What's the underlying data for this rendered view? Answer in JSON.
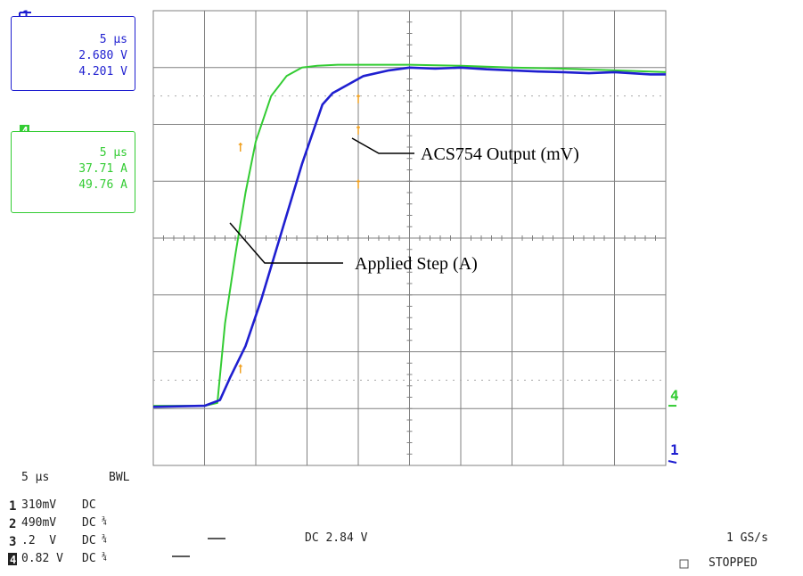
{
  "colors": {
    "ch1": "#1f1fd0",
    "ch4": "#33cc33",
    "cursor": "#f0a020",
    "grid": "#808080",
    "text": "#222222"
  },
  "channel1_box": {
    "channel": "1",
    "time": "5 µs",
    "value1": "2.680 V",
    "value2": "4.201 V"
  },
  "channel4_box": {
    "channel": "4",
    "time": "5 µs",
    "value1": "37.71 A",
    "value2": "49.76 A"
  },
  "settings": {
    "timebase": "5 µs",
    "bwl": "BWL",
    "channels": [
      {
        "num": "1",
        "scale": "310mV",
        "coupling": "DC",
        "mark": ""
      },
      {
        "num": "2",
        "scale": "490mV",
        "coupling": "DC",
        "mark": "¾"
      },
      {
        "num": "3",
        "scale": ".2  V",
        "coupling": "DC",
        "mark": "¾"
      },
      {
        "num": "4",
        "scale": "0.82 V",
        "coupling": "DC",
        "mark": "¾"
      }
    ],
    "trigger": "DC 2.84 V",
    "sample_rate": "1 GS/s",
    "status": "STOPPED"
  },
  "chart_data": {
    "type": "line",
    "annotations": [
      "ACS754 Output (mV)",
      "Applied Step (A)"
    ],
    "right_markers": [
      "4",
      "1"
    ],
    "series": [
      {
        "name": "Applied Step (A)",
        "color": "#33cc33",
        "x": [
          0,
          1.0,
          1.25,
          1.4,
          1.6,
          1.8,
          2.0,
          2.3,
          2.6,
          2.9,
          3.2,
          3.6,
          4.0,
          5.0,
          6.0,
          7.0,
          8.0,
          9.0,
          10.0
        ],
        "y": [
          -2.95,
          -2.95,
          -2.9,
          -1.5,
          -0.3,
          0.8,
          1.7,
          2.5,
          2.85,
          3.0,
          3.03,
          3.05,
          3.05,
          3.05,
          3.03,
          3.0,
          2.98,
          2.95,
          2.92
        ]
      },
      {
        "name": "ACS754 Output (mV)",
        "color": "#1f1fd0",
        "x": [
          0,
          1.0,
          1.3,
          1.5,
          1.8,
          2.1,
          2.5,
          2.9,
          3.3,
          3.5,
          3.8,
          4.1,
          4.6,
          5.0,
          5.5,
          6.0,
          6.5,
          7.0,
          7.5,
          8.0,
          8.5,
          9.0,
          9.7,
          10.0
        ],
        "y": [
          -2.97,
          -2.95,
          -2.85,
          -2.45,
          -1.9,
          -1.1,
          0.1,
          1.3,
          2.35,
          2.55,
          2.7,
          2.85,
          2.95,
          3.0,
          2.98,
          3.0,
          2.97,
          2.95,
          2.93,
          2.92,
          2.9,
          2.92,
          2.88,
          2.88
        ]
      }
    ],
    "cursors": [
      {
        "x": 1.7,
        "y": 1.6,
        "color": "#f0a020"
      },
      {
        "x": 1.7,
        "y": -2.3,
        "color": "#f0a020"
      },
      {
        "x": 4.0,
        "y": 2.45,
        "color": "#f0a020"
      },
      {
        "x": 4.0,
        "y": 1.9,
        "color": "#f0a020"
      },
      {
        "x": 4.0,
        "y": 0.95,
        "color": "#f0a020"
      }
    ],
    "xlim": [
      0,
      10
    ],
    "ylim": [
      -4,
      4
    ],
    "grid": true,
    "xdivs": 10,
    "ydivs": 8
  }
}
